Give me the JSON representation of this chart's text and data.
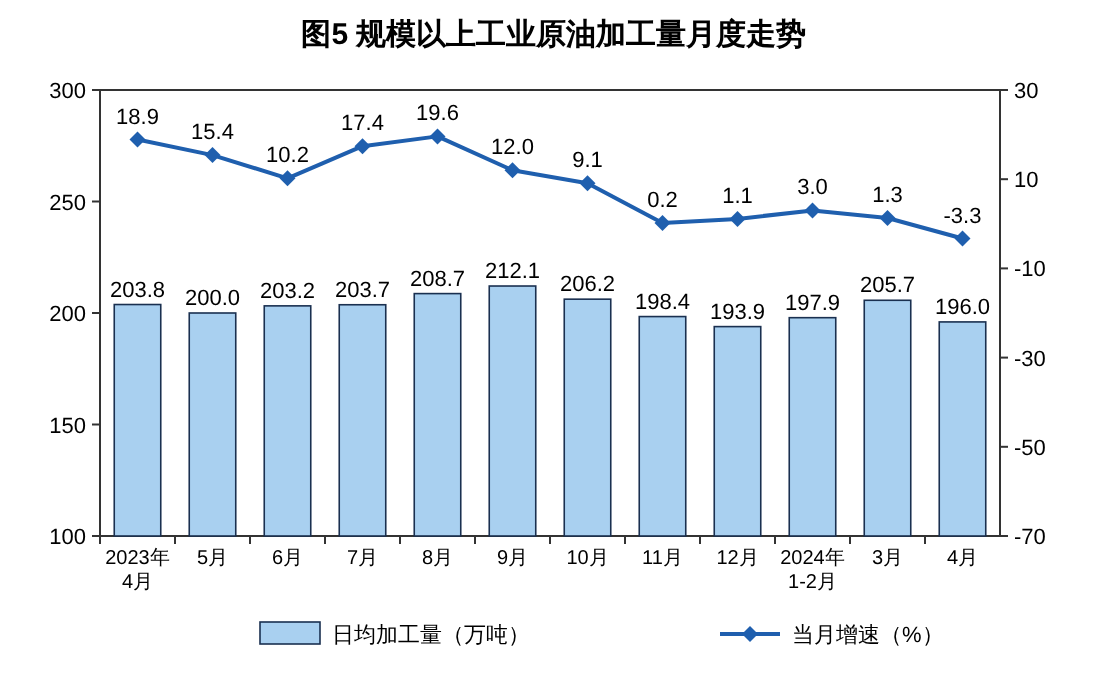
{
  "chart_data": {
    "type": "bar",
    "title": "图5  规模以上工业原油加工量月度走势",
    "categories": [
      "2023年\n4月",
      "5月",
      "6月",
      "7月",
      "8月",
      "9月",
      "10月",
      "11月",
      "12月",
      "2024年\n1-2月",
      "3月",
      "4月"
    ],
    "series": [
      {
        "name": "日均加工量（万吨）",
        "color": "#a9d0f0",
        "values": [
          203.8,
          200.0,
          203.2,
          203.7,
          208.7,
          212.1,
          206.2,
          198.4,
          193.9,
          197.9,
          205.7,
          196.0
        ],
        "value_labels": [
          "203.8",
          "200.0",
          "203.2",
          "203.7",
          "208.7",
          "212.1",
          "206.2",
          "198.4",
          "193.9",
          "197.9",
          "205.7",
          "196.0"
        ]
      },
      {
        "name": "当月增速（%）",
        "type": "line",
        "axis": "y2",
        "marker": "diamond",
        "color": "#1f5fae",
        "values": [
          18.9,
          15.4,
          10.2,
          17.4,
          19.6,
          12.0,
          9.1,
          0.2,
          1.1,
          3.0,
          1.3,
          -3.3
        ],
        "value_labels": [
          "18.9",
          "15.4",
          "10.2",
          "17.4",
          "19.6",
          "12.0",
          "9.1",
          "0.2",
          "1.1",
          "3.0",
          "1.3",
          "-3.3"
        ]
      }
    ],
    "ylim": [
      100,
      300
    ],
    "yticks": [
      100,
      150,
      200,
      250,
      300
    ],
    "y2lim": [
      -70,
      30
    ],
    "y2ticks": [
      -70,
      -50,
      -30,
      -10,
      10,
      30
    ],
    "legend": "bottom"
  }
}
